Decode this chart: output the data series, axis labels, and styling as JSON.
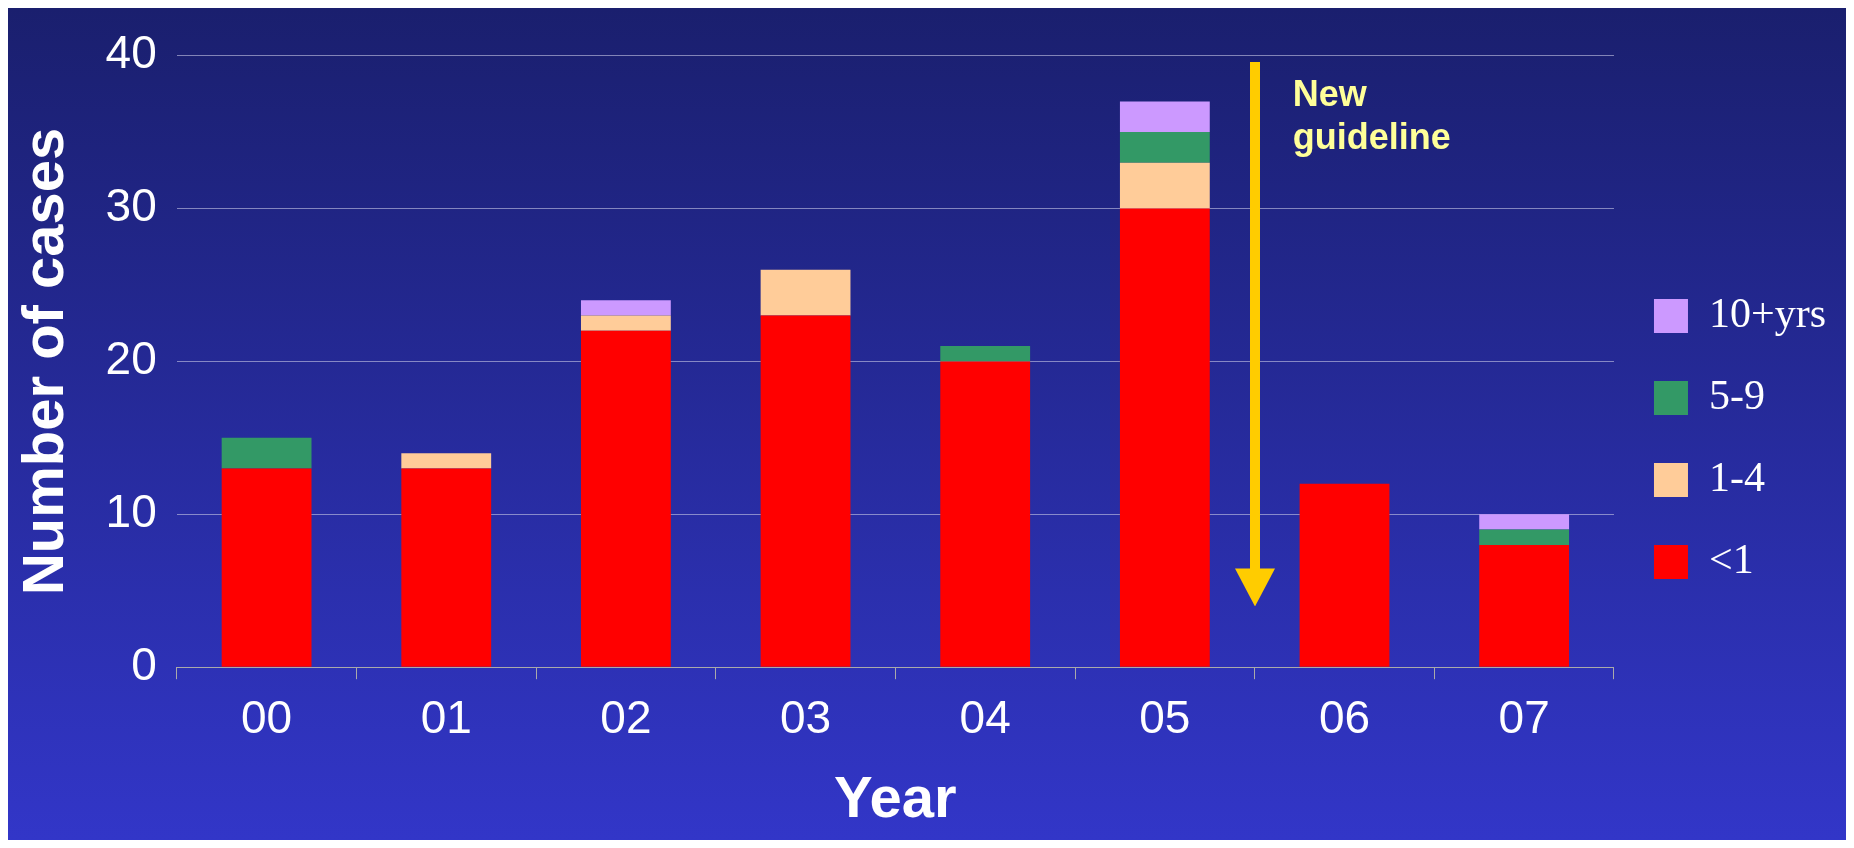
{
  "chart_data": {
    "type": "bar",
    "stacked": true,
    "xlabel": "Year",
    "ylabel": "Number of cases",
    "categories": [
      "00",
      "01",
      "02",
      "03",
      "04",
      "05",
      "06",
      "07"
    ],
    "series": [
      {
        "name": "<1",
        "color": "#ff0000",
        "values": [
          13,
          13,
          22,
          23,
          20,
          30,
          12,
          8
        ]
      },
      {
        "name": "1-4",
        "color": "#ffcc99",
        "values": [
          0,
          1,
          1,
          3,
          0,
          3,
          0,
          0
        ]
      },
      {
        "name": "5-9",
        "color": "#339966",
        "values": [
          2,
          0,
          0,
          0,
          1,
          2,
          0,
          1
        ]
      },
      {
        "name": "10+yrs",
        "color": "#cc99ff",
        "values": [
          0,
          0,
          1,
          0,
          0,
          2,
          0,
          1
        ]
      }
    ],
    "ylim": [
      0,
      40
    ],
    "yticks": [
      0,
      10,
      20,
      30,
      40
    ],
    "grid": "y",
    "legend": "right",
    "annotations": [
      "New guideline"
    ]
  }
}
